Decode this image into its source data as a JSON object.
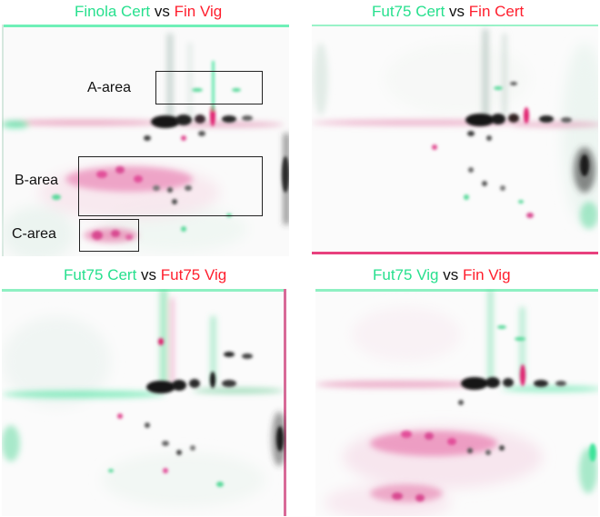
{
  "panels": [
    {
      "green": "Finola Cert",
      "vs": "vs",
      "red": "Fin Vig"
    },
    {
      "green": "Fut75 Cert",
      "vs": "vs",
      "red": "Fin Cert"
    },
    {
      "green": "Fut75 Cert",
      "vs": "vs",
      "red": "Fut75 Vig"
    },
    {
      "green": "Fut75 Vig",
      "vs": "vs",
      "red": "Fin Vig"
    }
  ],
  "areas": {
    "a": "A-area",
    "b": "B-area",
    "c": "C-area"
  },
  "colors": {
    "green_channel": "#27e08e",
    "red_channel": "#ff1e2d",
    "magenta_spot": "#e0407e",
    "dark_spot": "#101010"
  }
}
